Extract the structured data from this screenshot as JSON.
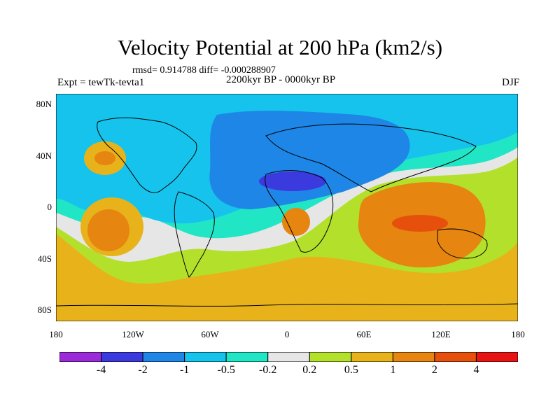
{
  "title": "Velocity Potential at 200 hPa (km2/s)",
  "stats": "rmsd= 0.914788 diff= -0.000288907",
  "experiment": "Expt = tewTk-tevta1",
  "period": "2200kyr BP - 0000kyr BP",
  "season": "DJF",
  "lat_ticks": [
    "80N",
    "40N",
    "0",
    "40S",
    "80S"
  ],
  "lon_ticks": [
    "180",
    "120W",
    "60W",
    "0",
    "60E",
    "120E",
    "180"
  ],
  "colorbar": {
    "labels": [
      "-4",
      "-2",
      "-1",
      "-0.5",
      "-0.2",
      "0.2",
      "0.5",
      "1",
      "2",
      "4"
    ],
    "colors": [
      "#9b2bd9",
      "#3a3adf",
      "#1e86e6",
      "#16c3ec",
      "#21e6c6",
      "#e6e6e6",
      "#b3e02a",
      "#e8b21b",
      "#e6850f",
      "#e6500c",
      "#e81313"
    ]
  }
}
